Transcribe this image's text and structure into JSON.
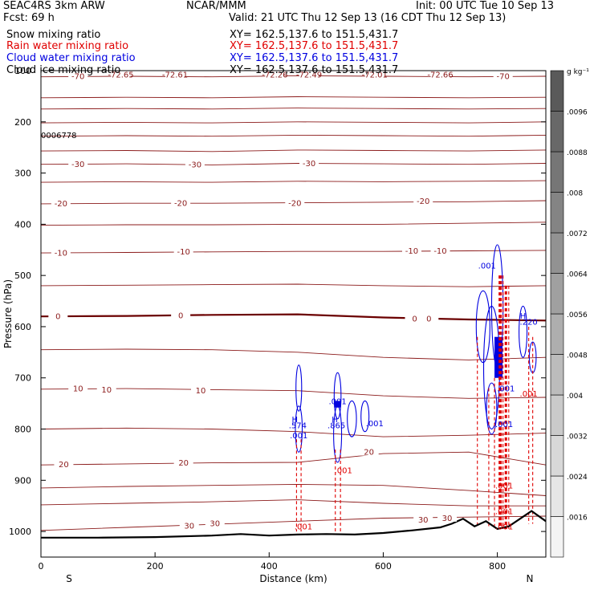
{
  "header": {
    "model": "SEAC4RS   3km ARW",
    "org": "NCAR/MMM",
    "init": "Init: 00 UTC Tue 10 Sep 13",
    "fcst": "Fcst:    69 h",
    "valid": "Valid: 21 UTC Thu 12 Sep 13 (16 CDT Thu 12 Sep 13)"
  },
  "fields": [
    {
      "name": "Snow mixing ratio",
      "xy": "XY=  162.5,137.6 to 151.5,431.7",
      "color": "#000000"
    },
    {
      "name": "Rain water mixing ratio",
      "xy": "XY=  162.5,137.6 to 151.5,431.7",
      "color": "#e00000"
    },
    {
      "name": "Cloud water mixing ratio",
      "xy": "XY=  162.5,137.6 to 151.5,431.7",
      "color": "#0000e0"
    },
    {
      "name": "Cloud ice mixing ratio",
      "xy": "XY=  162.5,137.6 to 151.5,431.7",
      "color": "#000000"
    }
  ],
  "colorbar": {
    "unit": "g kg⁻¹",
    "ticks": [
      ".0016",
      ".0024",
      ".0032",
      ".004",
      ".0048",
      ".0056",
      ".0064",
      ".0072",
      ".008",
      ".0088",
      ".0096"
    ],
    "colors": [
      "#f4f4f4",
      "#e6e6e6",
      "#d8d8d8",
      "#cacaca",
      "#bcbcbc",
      "#aeaeae",
      "#a0a0a0",
      "#929292",
      "#848484",
      "#767676",
      "#686868",
      "#5a5a5a"
    ]
  },
  "annotations": {
    "left_value": "0006778",
    "south": "S",
    "north": "N"
  },
  "colors": {
    "temperature": "#8b1a1a",
    "zero_line": "#6b0000",
    "rain": "#e00000",
    "cloud_water": "#0000e0",
    "terrain": "#000000"
  },
  "chart_data": {
    "type": "cross-section",
    "xlabel": "Distance (km)",
    "ylabel": "Pressure (hPa)",
    "xlim": [
      0,
      885
    ],
    "ylim": [
      1050,
      100
    ],
    "x_ticks": [
      0,
      200,
      400,
      600,
      800
    ],
    "y_ticks": [
      100,
      200,
      300,
      400,
      500,
      600,
      700,
      800,
      900,
      1000
    ],
    "temperature_labels": [
      {
        "text": "-72.65",
        "x": 140,
        "p": 107
      },
      {
        "text": "-72.61",
        "x": 235,
        "p": 107
      },
      {
        "text": "-72.26",
        "x": 410,
        "p": 107
      },
      {
        "text": "-72.49",
        "x": 470,
        "p": 107
      },
      {
        "text": "-72.01",
        "x": 585,
        "p": 107
      },
      {
        "text": "-72.66",
        "x": 700,
        "p": 107
      },
      {
        "text": "-70",
        "x": 65,
        "p": 110
      },
      {
        "text": "-70",
        "x": 810,
        "p": 110
      },
      {
        "text": "-30",
        "x": 65,
        "p": 282
      },
      {
        "text": "-30",
        "x": 270,
        "p": 283
      },
      {
        "text": "-30",
        "x": 470,
        "p": 280
      },
      {
        "text": "-20",
        "x": 35,
        "p": 359
      },
      {
        "text": "-20",
        "x": 245,
        "p": 358
      },
      {
        "text": "-20",
        "x": 445,
        "p": 358
      },
      {
        "text": "-20",
        "x": 670,
        "p": 354
      },
      {
        "text": "-10",
        "x": 35,
        "p": 455
      },
      {
        "text": "-10",
        "x": 250,
        "p": 453
      },
      {
        "text": "-10",
        "x": 650,
        "p": 451
      },
      {
        "text": "-10",
        "x": 700,
        "p": 451
      },
      {
        "text": "0",
        "x": 30,
        "p": 579
      },
      {
        "text": "0",
        "x": 245,
        "p": 577
      },
      {
        "text": "0",
        "x": 655,
        "p": 584
      },
      {
        "text": "0",
        "x": 680,
        "p": 584
      },
      {
        "text": "10",
        "x": 65,
        "p": 720
      },
      {
        "text": "10",
        "x": 115,
        "p": 722
      },
      {
        "text": "10",
        "x": 280,
        "p": 724
      },
      {
        "text": "20",
        "x": 40,
        "p": 868
      },
      {
        "text": "20",
        "x": 250,
        "p": 865
      },
      {
        "text": "20",
        "x": 575,
        "p": 844
      },
      {
        "text": "30",
        "x": 260,
        "p": 988
      },
      {
        "text": "30",
        "x": 305,
        "p": 983
      },
      {
        "text": "30",
        "x": 670,
        "p": 976
      },
      {
        "text": "30",
        "x": 712,
        "p": 973
      }
    ],
    "temperature_isotherms": [
      {
        "label": "-70",
        "p": [
          112,
          111,
          112,
          110,
          111,
          112,
          111
        ]
      },
      {
        "label": "",
        "p": [
          153,
          152,
          153,
          151,
          152,
          153,
          152
        ]
      },
      {
        "label": "",
        "p": [
          175,
          174,
          175,
          173,
          174,
          175,
          174
        ]
      },
      {
        "label": "",
        "p": [
          202,
          201,
          202,
          200,
          201,
          202,
          200
        ]
      },
      {
        "label": "",
        "p": [
          228,
          227,
          228,
          226,
          227,
          228,
          226
        ]
      },
      {
        "label": "",
        "p": [
          257,
          256,
          258,
          255,
          256,
          257,
          255
        ]
      },
      {
        "label": "-30",
        "p": [
          283,
          282,
          284,
          281,
          282,
          283,
          281
        ]
      },
      {
        "label": "",
        "p": [
          318,
          317,
          318,
          316,
          317,
          316,
          315
        ]
      },
      {
        "label": "-20",
        "p": [
          360,
          359,
          359,
          358,
          357,
          356,
          354
        ]
      },
      {
        "label": "",
        "p": [
          402,
          401,
          401,
          400,
          400,
          398,
          396
        ]
      },
      {
        "label": "-10",
        "p": [
          456,
          455,
          454,
          453,
          453,
          452,
          451
        ]
      },
      {
        "label": "",
        "p": [
          520,
          519,
          518,
          517,
          520,
          522,
          520
        ]
      },
      {
        "label": "0",
        "p": [
          580,
          579,
          577,
          576,
          582,
          586,
          588
        ]
      },
      {
        "label": "",
        "p": [
          645,
          644,
          645,
          650,
          660,
          665,
          660
        ]
      },
      {
        "label": "10",
        "p": [
          722,
          721,
          723,
          725,
          735,
          740,
          738
        ]
      },
      {
        "label": "",
        "p": [
          800,
          798,
          800,
          805,
          815,
          812,
          808
        ]
      },
      {
        "label": "20",
        "p": [
          870,
          868,
          866,
          865,
          848,
          845,
          870
        ]
      },
      {
        "label": "",
        "p": [
          915,
          912,
          910,
          908,
          910,
          920,
          930
        ]
      },
      {
        "label": "",
        "p": [
          948,
          945,
          942,
          938,
          945,
          950,
          950
        ]
      },
      {
        "label": "30",
        "p": [
          998,
          992,
          986,
          980,
          974,
          972,
          970
        ]
      }
    ],
    "isotherm_x": [
      0,
      150,
      300,
      450,
      600,
      750,
      885
    ],
    "cloud_labels": [
      {
        "text": "H",
        "x": 445,
        "p": 780
      },
      {
        "text": ".574",
        "x": 450,
        "p": 792
      },
      {
        "text": ".001",
        "x": 452,
        "p": 812
      },
      {
        "text": "H",
        "x": 515,
        "p": 780
      },
      {
        "text": ".865",
        "x": 518,
        "p": 792
      },
      {
        "text": ".001",
        "x": 520,
        "p": 745
      },
      {
        "text": ".001",
        "x": 585,
        "p": 788
      },
      {
        "text": "H",
        "x": 845,
        "p": 578
      },
      {
        "text": ".220",
        "x": 855,
        "p": 590
      },
      {
        "text": ".001",
        "x": 782,
        "p": 480
      },
      {
        "text": ".001",
        "x": 812,
        "p": 790
      },
      {
        "text": ".001",
        "x": 815,
        "p": 720
      }
    ],
    "rain_labels": [
      {
        "text": ".001",
        "x": 460,
        "p": 990
      },
      {
        "text": ".001",
        "x": 530,
        "p": 880
      },
      {
        "text": ".001",
        "x": 855,
        "p": 730
      },
      {
        "text": ".001",
        "x": 812,
        "p": 910
      },
      {
        "text": ".001",
        "x": 812,
        "p": 960
      },
      {
        "text": ".001",
        "x": 812,
        "p": 990
      }
    ]
  }
}
